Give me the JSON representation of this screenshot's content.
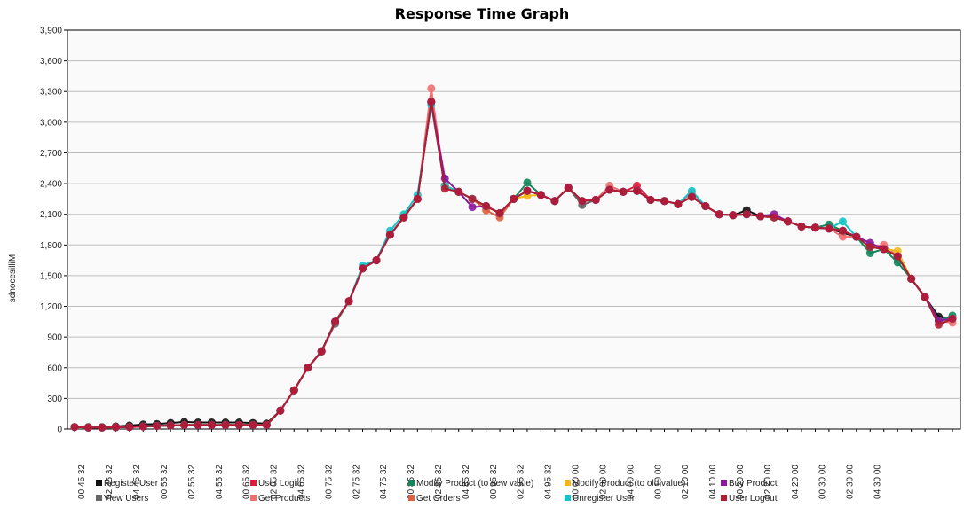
{
  "chart_data": {
    "type": "line",
    "title": "Response Time Graph",
    "ylabel": "sdnocesilliM",
    "xlabel": "",
    "ylim": [
      0,
      3900
    ],
    "yticks": [
      0,
      300,
      600,
      900,
      1200,
      1500,
      1800,
      2100,
      2400,
      2700,
      3000,
      3300,
      3600,
      3900
    ],
    "ytick_labels": [
      "0",
      "300",
      "600",
      "900",
      "1,200",
      "1,500",
      "1,800",
      "2,100",
      "2,400",
      "2,700",
      "3,000",
      "3,300",
      "3,600",
      "3,900"
    ],
    "grid": true,
    "legend_position": "bottom",
    "xtick_labels": [
      "00 45 32",
      "02 45 32",
      "04 45 32",
      "00 55 32",
      "02 55 32",
      "04 55 32",
      "00 65 32",
      "02 65 32",
      "04 65 32",
      "00 75 32",
      "02 75 32",
      "04 75 32",
      "00 85 32",
      "02 85 32",
      "04 85 32",
      "00 95 32",
      "02 95 32",
      "04 95 32",
      "00 00 00",
      "02 00 00",
      "04 00 00",
      "00 10 00",
      "02 10 00",
      "04 10 00",
      "00 20 00",
      "02 20 00",
      "04 20 00",
      "00 30 00",
      "02 30 00",
      "04 30 00"
    ],
    "x_count": 65,
    "base_values": [
      20,
      15,
      15,
      18,
      20,
      25,
      30,
      35,
      40,
      40,
      40,
      40,
      40,
      40,
      40,
      180,
      380,
      600,
      760,
      1050,
      1250,
      1570,
      1650,
      1900,
      2070,
      2250,
      3200,
      2380,
      2320,
      2250,
      2180,
      2110,
      2250,
      2330,
      2290,
      2230,
      2360,
      2230,
      2240,
      2340,
      2320,
      2330,
      2240,
      2230,
      2200,
      2270,
      2180,
      2100,
      2090,
      2100,
      2080,
      2070,
      2030,
      1980,
      1970,
      1960,
      1940,
      1880,
      1780,
      1760,
      1690,
      1470,
      1290,
      1060,
      1080
    ],
    "series": [
      {
        "name": "Register User",
        "color": "#111111",
        "offsets": [
          0,
          5,
          5,
          8,
          15,
          20,
          20,
          25,
          30,
          25,
          25,
          25,
          25,
          20,
          15,
          0,
          0,
          0,
          0,
          0,
          0,
          0,
          0,
          0,
          0,
          0,
          0,
          0,
          0,
          0,
          0,
          0,
          0,
          0,
          0,
          0,
          0,
          0,
          0,
          0,
          0,
          0,
          0,
          0,
          0,
          0,
          0,
          0,
          0,
          40,
          0,
          0,
          0,
          0,
          0,
          0,
          -20,
          0,
          0,
          0,
          0,
          0,
          0,
          40,
          0
        ]
      },
      {
        "name": "View Users",
        "color": "#666666",
        "offsets": [
          0,
          0,
          0,
          0,
          0,
          0,
          0,
          0,
          0,
          0,
          0,
          0,
          0,
          0,
          0,
          0,
          0,
          0,
          0,
          -20,
          0,
          0,
          0,
          0,
          0,
          0,
          0,
          0,
          0,
          0,
          0,
          0,
          0,
          0,
          0,
          0,
          0,
          -40,
          0,
          0,
          0,
          0,
          0,
          0,
          0,
          0,
          0,
          0,
          0,
          0,
          0,
          0,
          0,
          0,
          0,
          0,
          0,
          0,
          0,
          0,
          0,
          0,
          0,
          0,
          0
        ]
      },
      {
        "name": "User Login",
        "color": "#d81e3c",
        "offsets": [
          0,
          0,
          0,
          0,
          0,
          0,
          0,
          0,
          0,
          0,
          0,
          0,
          0,
          0,
          0,
          0,
          0,
          0,
          0,
          0,
          0,
          0,
          0,
          0,
          0,
          0,
          0,
          0,
          0,
          0,
          0,
          0,
          0,
          0,
          0,
          0,
          0,
          0,
          0,
          0,
          0,
          50,
          0,
          0,
          0,
          0,
          0,
          0,
          0,
          0,
          0,
          0,
          0,
          0,
          0,
          0,
          0,
          0,
          0,
          0,
          0,
          0,
          0,
          0,
          0
        ]
      },
      {
        "name": "Get Products",
        "color": "#f07070",
        "offsets": [
          0,
          0,
          0,
          0,
          0,
          0,
          0,
          0,
          0,
          0,
          0,
          0,
          0,
          0,
          0,
          0,
          0,
          0,
          0,
          0,
          0,
          0,
          0,
          0,
          0,
          0,
          130,
          0,
          0,
          0,
          0,
          0,
          0,
          0,
          0,
          0,
          0,
          0,
          0,
          40,
          0,
          0,
          0,
          0,
          0,
          40,
          0,
          0,
          0,
          0,
          0,
          0,
          0,
          0,
          0,
          0,
          -60,
          0,
          0,
          40,
          0,
          0,
          0,
          0,
          -40
        ]
      },
      {
        "name": "Modify Product (to new value)",
        "color": "#13865a",
        "offsets": [
          0,
          0,
          0,
          0,
          0,
          0,
          0,
          0,
          0,
          0,
          0,
          0,
          0,
          0,
          0,
          0,
          0,
          0,
          0,
          0,
          0,
          0,
          0,
          0,
          0,
          0,
          0,
          0,
          0,
          0,
          0,
          0,
          0,
          80,
          0,
          0,
          0,
          0,
          0,
          0,
          0,
          0,
          0,
          0,
          0,
          0,
          0,
          0,
          0,
          0,
          0,
          0,
          0,
          0,
          0,
          40,
          0,
          0,
          -60,
          0,
          -60,
          0,
          0,
          0,
          30
        ]
      },
      {
        "name": "Get Orders",
        "color": "#e06040",
        "offsets": [
          0,
          0,
          0,
          0,
          0,
          0,
          0,
          0,
          0,
          0,
          0,
          0,
          0,
          0,
          0,
          0,
          0,
          0,
          0,
          0,
          0,
          0,
          0,
          0,
          0,
          0,
          0,
          0,
          0,
          0,
          -40,
          -40,
          0,
          0,
          0,
          0,
          0,
          0,
          0,
          0,
          0,
          0,
          0,
          0,
          0,
          0,
          0,
          0,
          0,
          0,
          0,
          0,
          0,
          0,
          0,
          0,
          0,
          0,
          0,
          0,
          0,
          0,
          0,
          0,
          0
        ]
      },
      {
        "name": "Modify Product (to old value)",
        "color": "#f2b81a",
        "offsets": [
          0,
          0,
          0,
          0,
          0,
          0,
          0,
          0,
          0,
          0,
          0,
          0,
          0,
          0,
          0,
          0,
          0,
          0,
          0,
          0,
          0,
          0,
          0,
          0,
          0,
          0,
          0,
          0,
          0,
          0,
          0,
          0,
          0,
          -50,
          0,
          0,
          0,
          0,
          0,
          0,
          0,
          0,
          0,
          0,
          0,
          0,
          0,
          0,
          0,
          0,
          0,
          0,
          0,
          0,
          0,
          0,
          0,
          0,
          0,
          0,
          50,
          0,
          0,
          0,
          0
        ]
      },
      {
        "name": "Unregister User",
        "color": "#12c4c8",
        "offsets": [
          0,
          0,
          0,
          0,
          0,
          0,
          0,
          0,
          0,
          0,
          0,
          0,
          0,
          0,
          0,
          0,
          0,
          0,
          0,
          0,
          0,
          30,
          0,
          40,
          30,
          40,
          -30,
          0,
          0,
          0,
          0,
          0,
          0,
          0,
          0,
          0,
          0,
          0,
          0,
          0,
          0,
          0,
          0,
          0,
          0,
          60,
          0,
          0,
          0,
          0,
          0,
          0,
          0,
          0,
          0,
          0,
          90,
          0,
          0,
          0,
          0,
          0,
          0,
          0,
          0
        ]
      },
      {
        "name": "Buy Product",
        "color": "#8a1a9c",
        "offsets": [
          0,
          0,
          0,
          0,
          0,
          0,
          0,
          0,
          0,
          0,
          0,
          0,
          0,
          0,
          0,
          0,
          0,
          0,
          0,
          0,
          0,
          0,
          0,
          0,
          0,
          0,
          0,
          70,
          0,
          -80,
          0,
          0,
          0,
          0,
          0,
          0,
          0,
          0,
          0,
          0,
          0,
          0,
          0,
          0,
          0,
          0,
          0,
          0,
          0,
          0,
          0,
          30,
          0,
          0,
          0,
          0,
          0,
          0,
          40,
          0,
          0,
          0,
          0,
          0,
          0
        ]
      },
      {
        "name": "User Logout",
        "color": "#b01c34",
        "offsets": [
          0,
          0,
          0,
          0,
          0,
          0,
          0,
          0,
          0,
          0,
          0,
          0,
          0,
          0,
          0,
          0,
          0,
          0,
          0,
          0,
          0,
          0,
          0,
          0,
          0,
          0,
          0,
          -30,
          0,
          0,
          0,
          0,
          0,
          0,
          0,
          0,
          0,
          0,
          0,
          0,
          0,
          0,
          0,
          0,
          0,
          0,
          0,
          0,
          0,
          0,
          0,
          0,
          0,
          0,
          0,
          0,
          0,
          0,
          0,
          0,
          0,
          0,
          0,
          -40,
          0
        ]
      }
    ]
  }
}
